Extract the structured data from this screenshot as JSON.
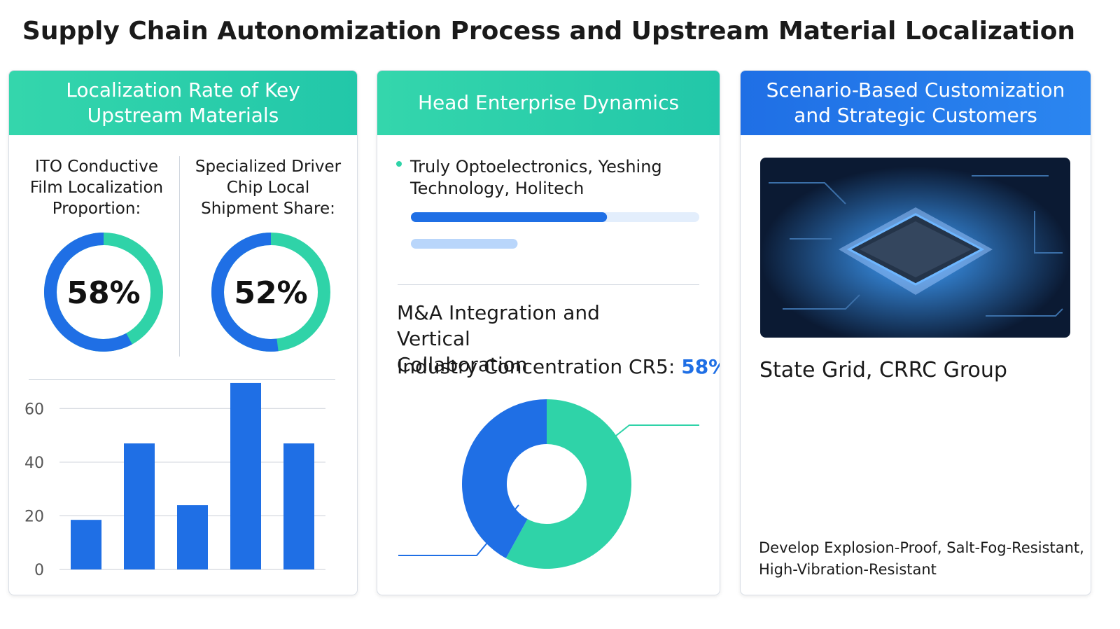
{
  "title": "Supply Chain Autonomization Process and Upstream Material Localization",
  "panels": [
    {
      "header": "Localization Rate of Key Upstream Materials",
      "gauges": [
        {
          "label": "ITO Conductive Film Localization Proportion:",
          "value": 58,
          "value_label": "58%",
          "color": "#1f6fe5",
          "track_color": "#2fd3a8"
        },
        {
          "label": "Specialized Driver Chip Local Shipment Share:",
          "value": 52,
          "value_label": "52%",
          "color": "#1f6fe5",
          "track_color": "#2fd3a8"
        }
      ],
      "bar_chart": {
        "type": "bar",
        "values": [
          18.5,
          47,
          24,
          69.5,
          47
        ],
        "ylim": [
          0,
          70
        ],
        "yticks": [
          0,
          20,
          40,
          60
        ],
        "color": "#1f6fe5",
        "grid": true
      }
    },
    {
      "header": "Head Enterprise Dynamics",
      "bullet": "Truly Optoelectronics, Yeshing Technology, Holitech",
      "progress": {
        "values": [
          68,
          37
        ],
        "xlim": [
          0,
          100
        ]
      },
      "subheading": "M&A Integration and Vertical Collaboration",
      "cr5_label": "Industry Concentration CR5:",
      "cr5": {
        "value": 58,
        "value_label": "58%"
      },
      "donut_colors": [
        "#2fd3a8",
        "#1f6fe5"
      ]
    },
    {
      "header": "Scenario-Based Customization and Strategic Customers",
      "customers": "State Grid, CRRC Group",
      "caption": "Develop Explosion-Proof, Salt-Fog-Resistant, High-Vibration-Resistant"
    }
  ]
}
